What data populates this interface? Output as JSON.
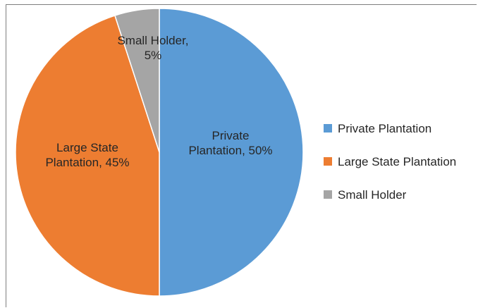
{
  "chart_data": {
    "type": "pie",
    "title": "",
    "start_angle_deg": 0,
    "direction": "clockwise",
    "legend_position": "right",
    "slices": [
      {
        "name": "Private Plantation",
        "value": 50,
        "color": "#5b9bd5",
        "label_lines": [
          "Private",
          "Plantation, 50%"
        ]
      },
      {
        "name": "Large State Plantation",
        "value": 45,
        "color": "#ed7d31",
        "label_lines": [
          "Large State",
          "Plantation, 45%"
        ]
      },
      {
        "name": "Small Holder",
        "value": 5,
        "color": "#a5a5a5",
        "label_lines": [
          "Small Holder,",
          "5%"
        ]
      }
    ],
    "legend": [
      {
        "label": "Private Plantation",
        "color": "#5b9bd5"
      },
      {
        "label": "Large State Plantation",
        "color": "#ed7d31"
      },
      {
        "label": "Small Holder",
        "color": "#a5a5a5"
      }
    ]
  }
}
